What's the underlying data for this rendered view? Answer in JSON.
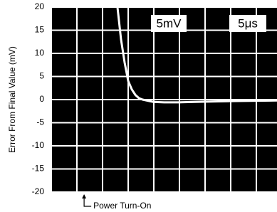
{
  "chart_data": {
    "type": "line",
    "y_label": "Error From Final Value (mV)",
    "x": [
      12.9,
      13.6,
      14.3,
      15.0,
      15.7,
      16.4,
      17.1,
      17.8,
      19.9,
      22.0,
      24.7,
      28.0,
      31.7,
      36.0,
      40.0,
      44.0
    ],
    "series": [
      {
        "color": "#ffffff",
        "values": [
          20,
          13,
          8,
          4,
          2.2,
          1,
          0.3,
          0,
          -0.5,
          -0.6,
          -0.6,
          -0.5,
          -0.4,
          -0.3,
          -0.25,
          -0.2
        ]
      }
    ],
    "xlim": [
      0,
      44
    ],
    "ylim": [
      -20,
      20
    ],
    "yticks": [
      -20,
      -15,
      -10,
      -5,
      0,
      5,
      10,
      15,
      20
    ],
    "grid": true,
    "scale_labels": [
      "5mV",
      "5μs"
    ],
    "annotation": {
      "text": "Power Turn-On",
      "x": 6.4
    }
  }
}
